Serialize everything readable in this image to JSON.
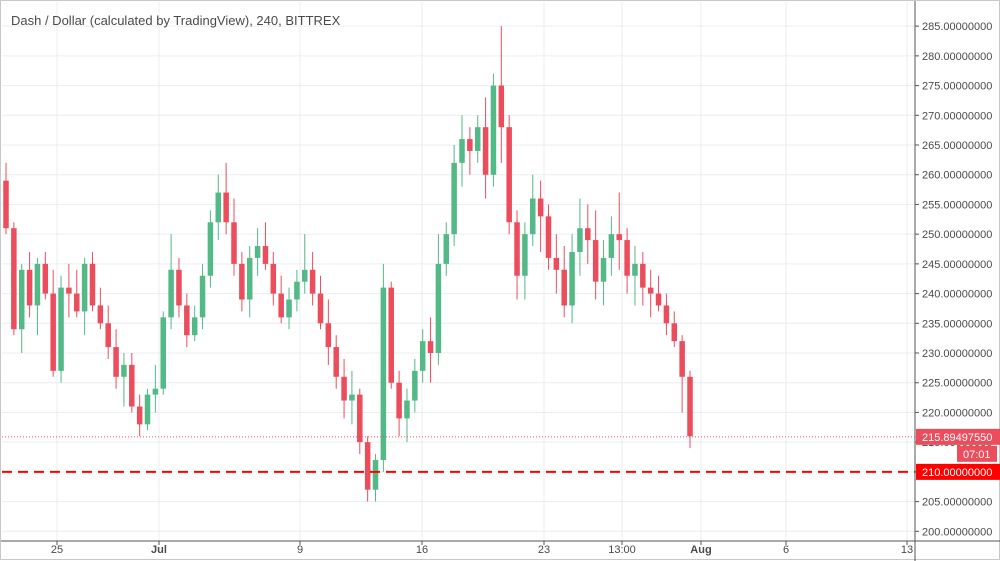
{
  "chart_data": {
    "type": "candlestick",
    "title": "Dash / Dollar (calculated by TradingView), 240, BITTREX",
    "ylim": [
      200,
      288
    ],
    "y_ticks": [
      "200.00000000",
      "205.00000000",
      "210.00000000",
      "215.00000000",
      "220.00000000",
      "225.00000000",
      "230.00000000",
      "235.00000000",
      "240.00000000",
      "245.00000000",
      "250.00000000",
      "255.00000000",
      "260.00000000",
      "265.00000000",
      "270.00000000",
      "275.00000000",
      "280.00000000",
      "285.00000000"
    ],
    "x_ticks": [
      "25",
      "Jul",
      "9",
      "16",
      "23",
      "13:00",
      "Aug",
      "6",
      "13"
    ],
    "x_tick_bold": [
      "Jul",
      "Aug"
    ],
    "grid": true,
    "colors": {
      "up": "#53b987",
      "down": "#eb4d5c",
      "grid": "#e9eef2",
      "line": "#ff0000"
    },
    "last_price": {
      "label": "215.89497550",
      "countdown": "07:01",
      "value": 215.8949755
    },
    "support_line": {
      "label": "210.00000000",
      "value": 210.0
    },
    "candles": [
      [
        259,
        262,
        250,
        251
      ],
      [
        251,
        252,
        233,
        234
      ],
      [
        234,
        245,
        230,
        244
      ],
      [
        244,
        247,
        236,
        238
      ],
      [
        238,
        246,
        233,
        245
      ],
      [
        245,
        247,
        239,
        240
      ],
      [
        240,
        244,
        226,
        227
      ],
      [
        227,
        243,
        225,
        241
      ],
      [
        241,
        245,
        236,
        240
      ],
      [
        240,
        244,
        236,
        237
      ],
      [
        237,
        246,
        233,
        245
      ],
      [
        245,
        247,
        237,
        238
      ],
      [
        238,
        241,
        234,
        235
      ],
      [
        235,
        238,
        229,
        231
      ],
      [
        231,
        234,
        224,
        226
      ],
      [
        226,
        230,
        221,
        228
      ],
      [
        228,
        230,
        220,
        221
      ],
      [
        221,
        223,
        216,
        218
      ],
      [
        218,
        224,
        217,
        223
      ],
      [
        223,
        228,
        220,
        224
      ],
      [
        224,
        237,
        223,
        236
      ],
      [
        236,
        250,
        234,
        244
      ],
      [
        244,
        246,
        236,
        238
      ],
      [
        238,
        240,
        231,
        233
      ],
      [
        233,
        238,
        232,
        236
      ],
      [
        236,
        245,
        234,
        243
      ],
      [
        243,
        254,
        241,
        252
      ],
      [
        252,
        260,
        249,
        257
      ],
      [
        257,
        262,
        250,
        252
      ],
      [
        252,
        256,
        243,
        245
      ],
      [
        245,
        247,
        237,
        239
      ],
      [
        239,
        248,
        236,
        246
      ],
      [
        246,
        251,
        243,
        248
      ],
      [
        248,
        252,
        244,
        245
      ],
      [
        245,
        247,
        238,
        240
      ],
      [
        240,
        243,
        235,
        236
      ],
      [
        236,
        241,
        234,
        239
      ],
      [
        239,
        244,
        237,
        242
      ],
      [
        242,
        250,
        240,
        244
      ],
      [
        244,
        247,
        238,
        240
      ],
      [
        240,
        243,
        234,
        235
      ],
      [
        235,
        239,
        228,
        231
      ],
      [
        231,
        233,
        224,
        226
      ],
      [
        226,
        229,
        219,
        222
      ],
      [
        222,
        227,
        218,
        223
      ],
      [
        223,
        224,
        213,
        215
      ],
      [
        215,
        216,
        205,
        207
      ],
      [
        207,
        213,
        205,
        212
      ],
      [
        212,
        245,
        210,
        241
      ],
      [
        241,
        242,
        224,
        225
      ],
      [
        225,
        227,
        216,
        219
      ],
      [
        219,
        224,
        215,
        222
      ],
      [
        222,
        229,
        220,
        227
      ],
      [
        227,
        234,
        225,
        232
      ],
      [
        232,
        236,
        225,
        230
      ],
      [
        230,
        250,
        228,
        245
      ],
      [
        245,
        252,
        243,
        250
      ],
      [
        250,
        265,
        248,
        262
      ],
      [
        262,
        270,
        258,
        266
      ],
      [
        266,
        268,
        260,
        264
      ],
      [
        264,
        270,
        262,
        268
      ],
      [
        268,
        273,
        256,
        260
      ],
      [
        260,
        277,
        258,
        275
      ],
      [
        275,
        285,
        262,
        268
      ],
      [
        268,
        270,
        250,
        252
      ],
      [
        252,
        254,
        239,
        243
      ],
      [
        243,
        252,
        239,
        250
      ],
      [
        250,
        260,
        248,
        256
      ],
      [
        256,
        259,
        247,
        253
      ],
      [
        253,
        255,
        244,
        246
      ],
      [
        246,
        250,
        240,
        244
      ],
      [
        244,
        248,
        236,
        238
      ],
      [
        238,
        250,
        235,
        247
      ],
      [
        247,
        256,
        243,
        251
      ],
      [
        251,
        255,
        245,
        249
      ],
      [
        249,
        254,
        239,
        242
      ],
      [
        242,
        249,
        238,
        246
      ],
      [
        246,
        253,
        243,
        250
      ],
      [
        250,
        257,
        244,
        249
      ],
      [
        249,
        251,
        240,
        243
      ],
      [
        243,
        248,
        238,
        245
      ],
      [
        245,
        247,
        238,
        241
      ],
      [
        241,
        244,
        236,
        240
      ],
      [
        240,
        243,
        237,
        238
      ],
      [
        238,
        240,
        233,
        235
      ],
      [
        235,
        237,
        231,
        232
      ],
      [
        232,
        233,
        220,
        226
      ],
      [
        226,
        227,
        214,
        216
      ]
    ]
  }
}
